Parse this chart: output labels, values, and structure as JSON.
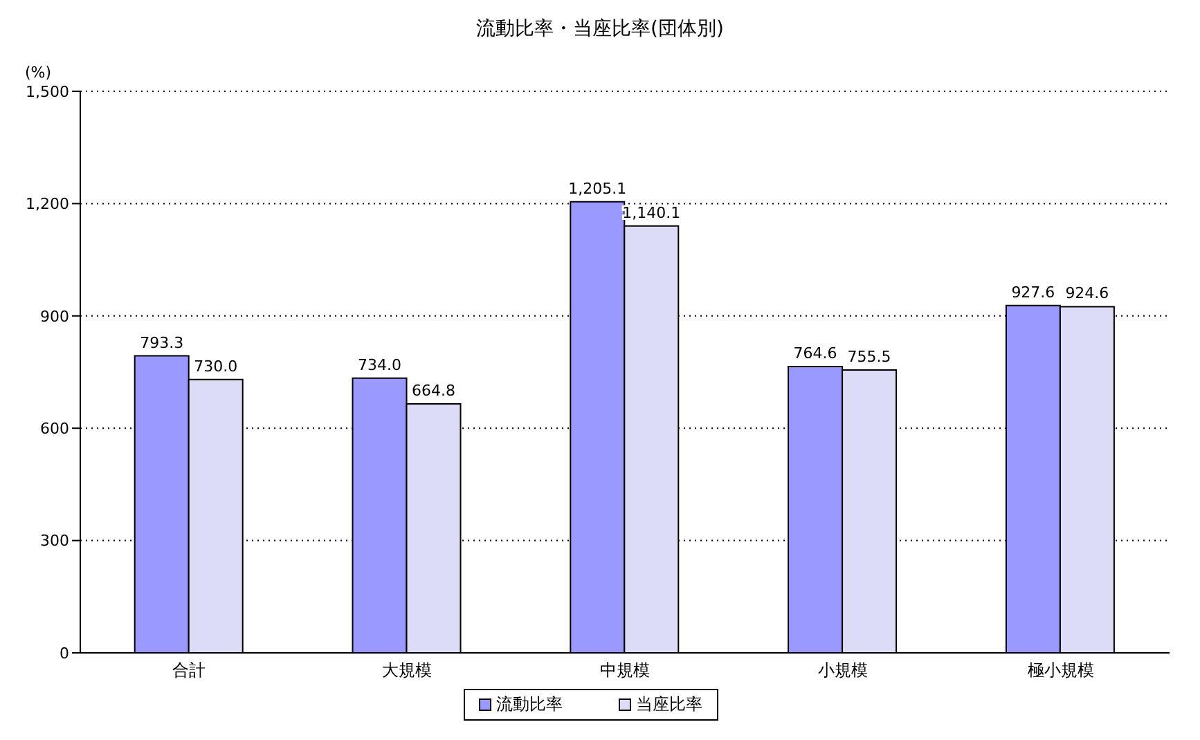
{
  "chart_data": {
    "type": "bar",
    "title": "流動比率・当座比率(団体別)",
    "ylabel": "(%)",
    "categories": [
      "合計",
      "大規模",
      "中規模",
      "小規模",
      "極小規模"
    ],
    "series": [
      {
        "name": "流動比率",
        "color": "#9999ff",
        "values": [
          793.3,
          734.0,
          1205.1,
          764.6,
          927.6
        ],
        "value_labels": [
          "793.3",
          "734.0",
          "1,205.1",
          "764.6",
          "927.6"
        ]
      },
      {
        "name": "当座比率",
        "color": "#dcdcf6",
        "values": [
          730.0,
          664.8,
          1140.1,
          755.5,
          924.6
        ],
        "value_labels": [
          "730.0",
          "664.8",
          "1,140.1",
          "755.5",
          "924.6"
        ]
      }
    ],
    "ylim": [
      0,
      1500
    ],
    "yticks": [
      {
        "value": 0,
        "label": "0"
      },
      {
        "value": 300,
        "label": "300"
      },
      {
        "value": 600,
        "label": "600"
      },
      {
        "value": 900,
        "label": "900"
      },
      {
        "value": 1200,
        "label": "1,200"
      },
      {
        "value": 1500,
        "label": "1,500"
      }
    ],
    "grid": "y",
    "legend": "bottom"
  }
}
